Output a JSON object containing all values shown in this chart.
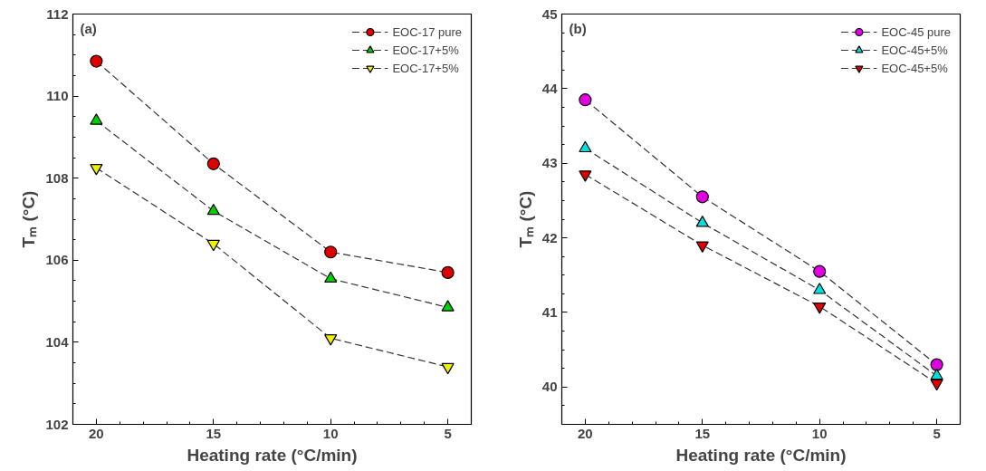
{
  "chart_data": [
    {
      "type": "line",
      "annotations": [
        "(a)"
      ],
      "xlabel": "Heating rate (°C/min)",
      "ylabel": "Tₘ (°C)",
      "x": [
        20,
        15,
        10,
        5
      ],
      "xlim": [
        21,
        4
      ],
      "xticks": [
        20,
        15,
        10,
        5
      ],
      "ylim": [
        102,
        112
      ],
      "yticks": [
        102,
        104,
        106,
        108,
        110,
        112
      ],
      "grid": false,
      "legend": "top right",
      "line_style": "dashed",
      "series": [
        {
          "name": "EOC-17 pure",
          "color": "#e00000",
          "marker": "circle",
          "values": [
            110.85,
            108.35,
            106.2,
            105.7
          ]
        },
        {
          "name": "EOC-17+5%",
          "color": "#00d000",
          "marker": "triangle",
          "values": [
            109.4,
            107.2,
            105.55,
            104.85
          ]
        },
        {
          "name": "EOC-17+5%",
          "color": "#f0f000",
          "marker": "triangle",
          "values": [
            108.25,
            106.4,
            104.1,
            103.4
          ]
        }
      ]
    },
    {
      "type": "line",
      "annotations": [
        "(b)"
      ],
      "xlabel": "Heating rate (°C/min)",
      "ylabel": "Tₘ (°C)",
      "x": [
        20,
        15,
        10,
        5
      ],
      "xlim": [
        21,
        4
      ],
      "xticks": [
        20,
        15,
        10,
        5
      ],
      "ylim": [
        39.5,
        45
      ],
      "yticks": [
        40,
        41,
        42,
        43,
        44,
        45
      ],
      "grid": false,
      "legend": "top right",
      "line_style": "dashed",
      "series": [
        {
          "name": "EOC-45 pure",
          "color": "#e000e0",
          "marker": "circle",
          "values": [
            43.85,
            42.55,
            41.55,
            40.3
          ]
        },
        {
          "name": "EOC-45+5%",
          "color": "#00e0e0",
          "marker": "triangle",
          "values": [
            43.2,
            42.2,
            41.3,
            40.15
          ]
        },
        {
          "name": "EOC-45+5%",
          "color": "#e00000",
          "marker": "triangle",
          "values": [
            42.85,
            41.9,
            41.08,
            40.05
          ]
        }
      ]
    }
  ]
}
